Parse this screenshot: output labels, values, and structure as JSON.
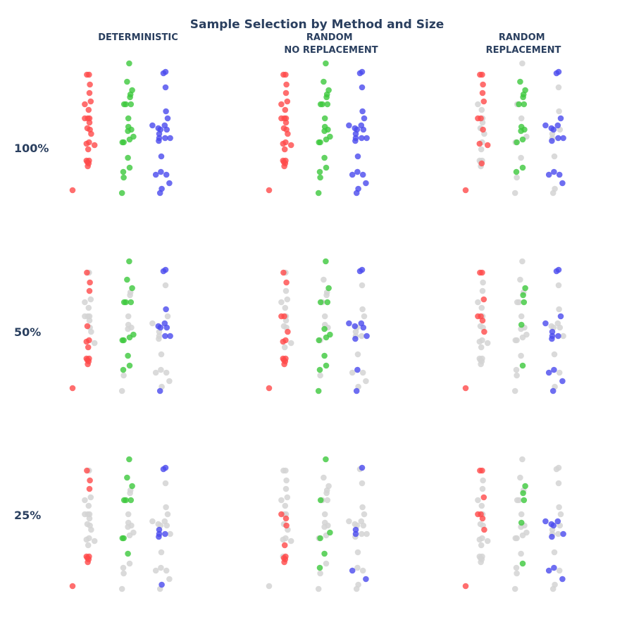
{
  "title": "Sample Selection by Method and Size",
  "columns": [
    {
      "label_lines": [
        "DETERMINISTIC"
      ]
    },
    {
      "label_lines": [
        "RANDOM",
        "NO REPLACEMENT"
      ]
    },
    {
      "label_lines": [
        "RANDOM",
        "REPLACEMENT"
      ]
    }
  ],
  "rows": [
    {
      "label": "100%"
    },
    {
      "label": "50%"
    },
    {
      "label": "25%"
    }
  ],
  "colors": {
    "A": "#ff4a4a",
    "B": "#3cc83c",
    "C": "#4a4aee",
    "unselected": "#d3d3d3",
    "text": "#2a3f5f"
  },
  "chart_data": {
    "type": "scatter",
    "title": "Sample Selection by Method and Size",
    "facet_columns": [
      "DETERMINISTIC",
      "RANDOM NO REPLACEMENT",
      "RANDOM REPLACEMENT"
    ],
    "facet_rows": [
      "100%",
      "50%",
      "25%"
    ],
    "groups": [
      "A",
      "B",
      "C"
    ],
    "axes_visible": false,
    "grid": false,
    "legend": "none",
    "x_range": [
      -0.5,
      2.5
    ],
    "y_range": [
      0,
      1
    ],
    "points": {
      "A": [
        {
          "x": -0.45,
          "y": 0.1
        },
        {
          "x": -0.12,
          "y": 0.31
        },
        {
          "x": -0.1,
          "y": 0.3
        },
        {
          "x": -0.09,
          "y": 0.27
        },
        {
          "x": -0.07,
          "y": 0.29
        },
        {
          "x": -0.06,
          "y": 0.31
        },
        {
          "x": -0.08,
          "y": 0.39
        },
        {
          "x": -0.06,
          "y": 0.44
        },
        {
          "x": -0.1,
          "y": 0.54
        },
        {
          "x": -0.12,
          "y": 0.43
        },
        {
          "x": -0.16,
          "y": 0.61
        },
        {
          "x": -0.16,
          "y": 0.71
        },
        {
          "x": -0.09,
          "y": 0.61
        },
        {
          "x": -0.05,
          "y": 0.61
        },
        {
          "x": -0.07,
          "y": 0.67
        },
        {
          "x": -0.04,
          "y": 0.53
        },
        {
          "x": -0.05,
          "y": 0.58
        },
        {
          "x": -0.01,
          "y": 0.5
        },
        {
          "x": 0.07,
          "y": 0.42
        },
        {
          "x": -0.02,
          "y": 0.73
        },
        {
          "x": -0.05,
          "y": 0.79
        },
        {
          "x": -0.04,
          "y": 0.85
        },
        {
          "x": -0.11,
          "y": 0.92
        },
        {
          "x": -0.06,
          "y": 0.92
        }
      ],
      "B": [
        {
          "x": 0.72,
          "y": 0.08
        },
        {
          "x": 0.76,
          "y": 0.19
        },
        {
          "x": 0.75,
          "y": 0.23
        },
        {
          "x": 0.9,
          "y": 0.26
        },
        {
          "x": 0.86,
          "y": 0.33
        },
        {
          "x": 0.73,
          "y": 0.44
        },
        {
          "x": 0.76,
          "y": 0.44
        },
        {
          "x": 0.9,
          "y": 0.46
        },
        {
          "x": 0.99,
          "y": 0.48
        },
        {
          "x": 0.86,
          "y": 0.52
        },
        {
          "x": 0.94,
          "y": 0.53
        },
        {
          "x": 0.87,
          "y": 0.55
        },
        {
          "x": 0.87,
          "y": 0.61
        },
        {
          "x": 0.77,
          "y": 0.71
        },
        {
          "x": 0.81,
          "y": 0.71
        },
        {
          "x": 0.93,
          "y": 0.71
        },
        {
          "x": 0.91,
          "y": 0.76
        },
        {
          "x": 0.92,
          "y": 0.78
        },
        {
          "x": 0.96,
          "y": 0.81
        },
        {
          "x": 0.84,
          "y": 0.87
        },
        {
          "x": 0.89,
          "y": 1.0
        }
      ],
      "C": [
        {
          "x": 1.62,
          "y": 0.08
        },
        {
          "x": 1.66,
          "y": 0.11
        },
        {
          "x": 1.84,
          "y": 0.15
        },
        {
          "x": 1.52,
          "y": 0.21
        },
        {
          "x": 1.64,
          "y": 0.23
        },
        {
          "x": 1.77,
          "y": 0.21
        },
        {
          "x": 1.65,
          "y": 0.34
        },
        {
          "x": 1.59,
          "y": 0.45
        },
        {
          "x": 1.6,
          "y": 0.47
        },
        {
          "x": 1.6,
          "y": 0.5
        },
        {
          "x": 1.74,
          "y": 0.47
        },
        {
          "x": 1.86,
          "y": 0.47
        },
        {
          "x": 1.63,
          "y": 0.53
        },
        {
          "x": 1.78,
          "y": 0.53
        },
        {
          "x": 1.44,
          "y": 0.56
        },
        {
          "x": 1.58,
          "y": 0.54
        },
        {
          "x": 1.73,
          "y": 0.56
        },
        {
          "x": 1.8,
          "y": 0.61
        },
        {
          "x": 1.76,
          "y": 0.66
        },
        {
          "x": 1.75,
          "y": 0.83
        },
        {
          "x": 1.7,
          "y": 0.93
        },
        {
          "x": 1.75,
          "y": 0.94
        }
      ]
    },
    "selected": {
      "DETERMINISTIC": {
        "100%": {
          "A": "all",
          "B": "all",
          "C": "all"
        },
        "50%": {
          "A": [
            0,
            1,
            2,
            3,
            4,
            5,
            6,
            7,
            8,
            9,
            20,
            21,
            22
          ],
          "B": [
            2,
            3,
            4,
            5,
            6,
            7,
            8,
            13,
            14,
            15,
            18,
            19,
            20
          ],
          "C": [
            0,
            10,
            11,
            12,
            13,
            15,
            16,
            18,
            20,
            21
          ]
        },
        "25%": {
          "A": [
            0,
            1,
            2,
            3,
            4,
            5,
            20,
            21,
            22
          ],
          "B": [
            4,
            5,
            6,
            13,
            14,
            15,
            18,
            19,
            20
          ],
          "C": [
            1,
            7,
            8,
            9,
            10,
            20,
            21
          ]
        }
      },
      "RANDOM NO REPLACEMENT": {
        "100%": {
          "A": "all",
          "B": "all",
          "C": "all"
        },
        "50%": {
          "A": [
            0,
            1,
            2,
            3,
            4,
            5,
            7,
            9,
            10,
            12,
            17,
            21,
            22
          ],
          "B": [
            0,
            2,
            3,
            4,
            5,
            7,
            8,
            9,
            13,
            15,
            18,
            20
          ],
          "C": [
            0,
            4,
            7,
            11,
            13,
            14,
            15,
            16,
            20,
            21
          ]
        },
        "25%": {
          "A": [
            2,
            3,
            4,
            5,
            6,
            10,
            15,
            16
          ],
          "B": [
            2,
            4,
            6,
            8,
            13,
            20
          ],
          "C": [
            2,
            3,
            8,
            9,
            21
          ]
        }
      },
      "RANDOM REPLACEMENT": {
        "100%": {
          "A": [
            0,
            4,
            9,
            10,
            12,
            15,
            18,
            19,
            20,
            21,
            22,
            23
          ],
          "B": [
            2,
            3,
            6,
            7,
            9,
            10,
            11,
            14,
            15,
            16,
            17,
            18,
            19
          ],
          "C": [
            2,
            3,
            4,
            5,
            7,
            10,
            11,
            12,
            14,
            15,
            16,
            17,
            20,
            21
          ]
        },
        "50%": {
          "A": [
            0,
            10,
            12,
            16,
            17,
            19,
            22,
            23
          ],
          "B": [
            3,
            11,
            15,
            16,
            18
          ],
          "C": [
            0,
            2,
            3,
            4,
            7,
            8,
            9,
            10,
            14,
            17,
            20,
            21
          ]
        },
        "25%": {
          "A": [
            0,
            10,
            12,
            16,
            17,
            19,
            22,
            23
          ],
          "B": [
            3,
            11,
            15,
            16,
            18
          ],
          "C": [
            2,
            3,
            4,
            7,
            11,
            12,
            14,
            15,
            16
          ]
        }
      }
    }
  }
}
